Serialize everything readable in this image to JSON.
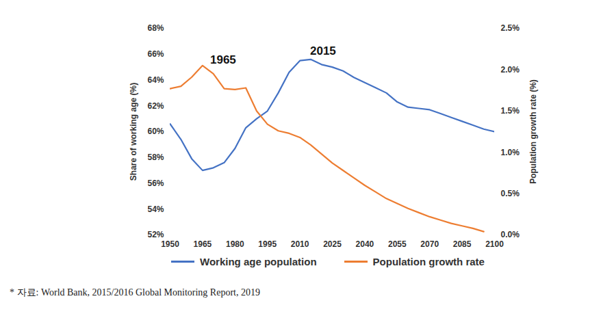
{
  "chart_data": {
    "type": "line",
    "x": [
      1950,
      1955,
      1960,
      1965,
      1970,
      1975,
      1980,
      1985,
      1990,
      1995,
      2000,
      2005,
      2010,
      2015,
      2020,
      2025,
      2030,
      2035,
      2040,
      2045,
      2050,
      2055,
      2060,
      2065,
      2070,
      2075,
      2080,
      2085,
      2090,
      2095,
      2100
    ],
    "series": [
      {
        "name": "Working age population",
        "color": "#4472c4",
        "axis": "y",
        "values": [
          60.6,
          59.4,
          57.9,
          57.0,
          57.2,
          57.6,
          58.7,
          60.3,
          61.0,
          61.6,
          63.0,
          64.6,
          65.5,
          65.6,
          65.2,
          65.0,
          64.7,
          64.2,
          63.8,
          63.4,
          63.0,
          62.3,
          61.9,
          61.8,
          61.7,
          61.4,
          61.1,
          60.8,
          60.5,
          60.2,
          60.0
        ]
      },
      {
        "name": "Population growth rate",
        "color": "#ed7d31",
        "axis": "y2",
        "values": [
          1.77,
          1.8,
          1.91,
          2.05,
          1.95,
          1.77,
          1.76,
          1.78,
          1.5,
          1.34,
          1.26,
          1.23,
          1.18,
          1.09,
          0.98,
          0.87,
          0.78,
          0.69,
          0.6,
          0.52,
          0.44,
          0.38,
          0.32,
          0.27,
          0.22,
          0.18,
          0.14,
          0.11,
          0.08,
          0.04,
          null
        ]
      }
    ],
    "xlim": [
      1950,
      2100
    ],
    "xticks": [
      1950,
      1965,
      1980,
      1995,
      2010,
      2025,
      2040,
      2055,
      2070,
      2085,
      2100
    ],
    "ylabel": "Share of working age (%)",
    "ylim": [
      52,
      68
    ],
    "yticks": [
      {
        "value": 52,
        "label": "52%"
      },
      {
        "value": 54,
        "label": "54%"
      },
      {
        "value": 56,
        "label": "56%"
      },
      {
        "value": 58,
        "label": "58%"
      },
      {
        "value": 60,
        "label": "60%"
      },
      {
        "value": 62,
        "label": "62%"
      },
      {
        "value": 64,
        "label": "64%"
      },
      {
        "value": 66,
        "label": "66%"
      },
      {
        "value": 68,
        "label": "68%"
      }
    ],
    "y2label": "Population growth rate (%)",
    "y2lim": [
      0,
      2.5
    ],
    "y2ticks": [
      {
        "value": 0,
        "label": "0.0%"
      },
      {
        "value": 0.5,
        "label": "0.5%"
      },
      {
        "value": 1,
        "label": "1.0%"
      },
      {
        "value": 1.5,
        "label": "1.5%"
      },
      {
        "value": 2,
        "label": "2.0%"
      },
      {
        "value": 2.5,
        "label": "2.5%"
      }
    ],
    "annotations": [
      {
        "text": "1965",
        "x": 1965,
        "y": 2.05,
        "axis": "y2"
      },
      {
        "text": "2015",
        "x": 2015,
        "y": 65.6,
        "axis": "y"
      }
    ],
    "grid": false,
    "legend": "bottom",
    "caption": "* 자료: World Bank, 2015/2016 Global Monitoring Report, 2019"
  }
}
